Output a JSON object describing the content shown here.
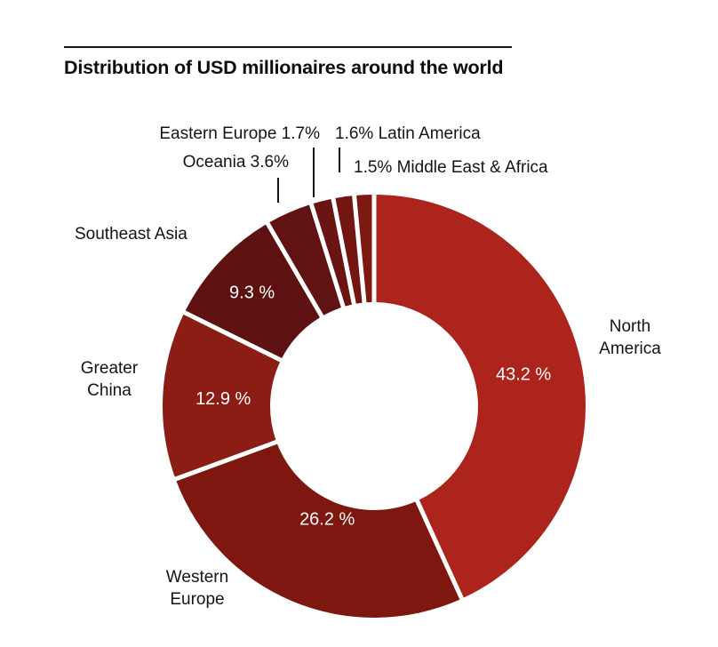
{
  "chart_data": {
    "type": "pie",
    "subtype": "donut",
    "title": "Distribution of USD millionaires around the world",
    "unit": "%",
    "start_angle_deg": 0,
    "direction": "clockwise",
    "inner_radius_ratio": 0.49,
    "legend_position": "none",
    "segments": [
      {
        "name": "North America",
        "value": 43.2,
        "color": "#AD241D",
        "slice_label": "43.2 %",
        "label_r": 172
      },
      {
        "name": "Western Europe",
        "value": 26.2,
        "color": "#7F1711",
        "slice_label": "26.2 %",
        "label_r": 137
      },
      {
        "name": "Greater China",
        "value": 12.9,
        "color": "#8B1D14",
        "slice_label": "12.9 %",
        "label_r": 170
      },
      {
        "name": "Southeast Asia",
        "value": 9.3,
        "color": "#5D1110",
        "slice_label": "9.3 %",
        "label_r": 188
      },
      {
        "name": "Oceania",
        "value": 3.6,
        "color": "#611213",
        "slice_label": "",
        "label_r": 0
      },
      {
        "name": "Eastern Europe",
        "value": 1.7,
        "color": "#6A1413",
        "slice_label": "",
        "label_r": 0
      },
      {
        "name": "Latin America",
        "value": 1.6,
        "color": "#731612",
        "slice_label": "",
        "label_r": 0
      },
      {
        "name": "Middle East & Africa",
        "value": 1.5,
        "color": "#7C1913",
        "slice_label": "",
        "label_r": 0
      }
    ]
  },
  "callouts": {
    "north_america": {
      "lines": [
        "North",
        "America"
      ]
    },
    "western_europe": {
      "lines": [
        "Western",
        "Europe"
      ]
    },
    "greater_china": {
      "lines": [
        "Greater",
        "China"
      ]
    },
    "southeast_asia": {
      "text": "Southeast Asia"
    },
    "oceania": {
      "text": "Oceania 3.6%"
    },
    "eastern_europe": {
      "text": "Eastern Europe 1.7%"
    },
    "latin_america": {
      "text": "1.6% Latin America"
    },
    "middle_east_africa": {
      "text": "1.5% Middle East & Africa"
    }
  },
  "colors": {
    "background": "#ffffff",
    "text": "#141414",
    "slice_value_text": "#ffffff",
    "rule": "#141414"
  }
}
